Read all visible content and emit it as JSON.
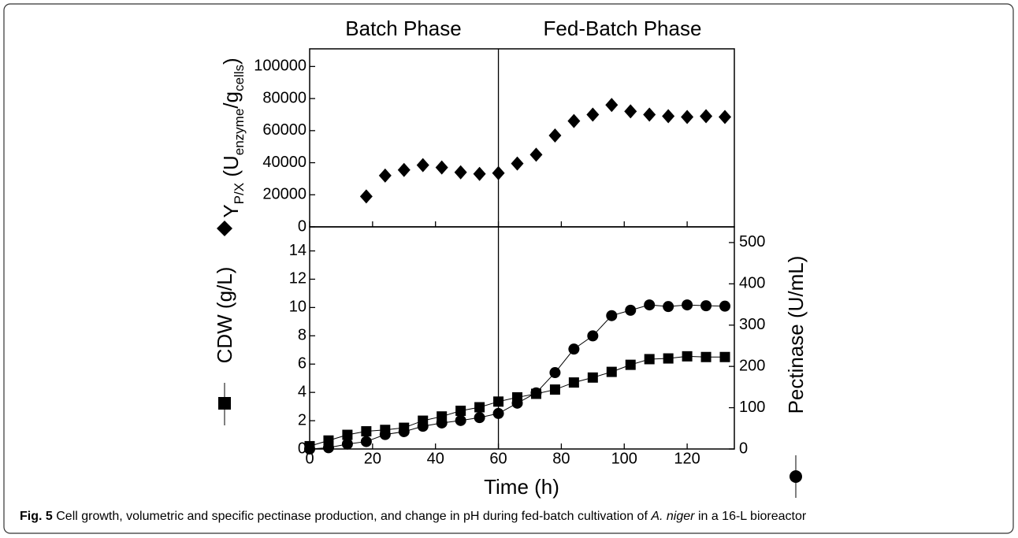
{
  "chart_data": [
    {
      "type": "scatter",
      "annotations": [
        "Batch Phase",
        "Fed-Batch Phase"
      ],
      "divider_x": 60,
      "ylabel_parts": [
        "Y",
        "P/X",
        " (U",
        "enzyme",
        "/g",
        "cells",
        ")"
      ],
      "xlim": [
        0,
        135
      ],
      "ylim": [
        0,
        111000
      ],
      "yticks": [
        0,
        20000,
        40000,
        60000,
        80000,
        100000
      ],
      "x": [
        18,
        24,
        30,
        36,
        42,
        48,
        54,
        60,
        66,
        72,
        78,
        84,
        90,
        96,
        102,
        108,
        114,
        120,
        126,
        132
      ],
      "series": [
        {
          "marker": "diamond",
          "color": "#000000",
          "values": [
            19000,
            32000,
            35500,
            38500,
            37000,
            34000,
            33000,
            33500,
            39500,
            45000,
            57000,
            66000,
            70000,
            76000,
            72000,
            70000,
            69000,
            68500,
            69000,
            68500
          ]
        }
      ]
    },
    {
      "type": "line",
      "xlabel": "Time (h)",
      "ylabel": "CDW (g/L)",
      "y2label": "Pectinase (U/mL)",
      "xlim": [
        0,
        135
      ],
      "xticks": [
        0,
        20,
        40,
        60,
        80,
        100,
        120
      ],
      "ylim": [
        0,
        15.7
      ],
      "yticks": [
        0,
        2,
        4,
        6,
        8,
        10,
        12,
        14
      ],
      "y2lim": [
        0,
        538
      ],
      "y2ticks": [
        0,
        100,
        200,
        300,
        400,
        500
      ],
      "x": [
        0,
        6,
        12,
        18,
        24,
        30,
        36,
        42,
        48,
        54,
        60,
        66,
        72,
        78,
        84,
        90,
        96,
        102,
        108,
        114,
        120,
        126,
        132
      ],
      "series": [
        {
          "marker": "square",
          "color": "#000000",
          "values": [
            0.2,
            0.6,
            1.0,
            1.25,
            1.35,
            1.5,
            2.0,
            2.3,
            2.7,
            2.95,
            3.35,
            3.65,
            3.9,
            4.2,
            4.7,
            5.05,
            5.45,
            5.95,
            6.35,
            6.4,
            6.55,
            6.5,
            6.5
          ]
        },
        {
          "marker": "circle",
          "color": "#000000",
          "axis": "y2",
          "values": [
            0,
            3,
            12,
            18,
            35,
            42,
            55,
            63,
            69,
            76,
            86,
            111,
            136,
            185,
            242,
            274,
            323,
            336,
            349,
            345,
            349,
            347,
            346
          ]
        }
      ]
    }
  ],
  "caption": {
    "label": "Fig. 5",
    "text_before": "Cell growth, volumetric and specific pectinase production, and change in pH during fed-batch cultivation of",
    "italic": "A. niger",
    "text_after": "in a 16-L bioreactor"
  }
}
